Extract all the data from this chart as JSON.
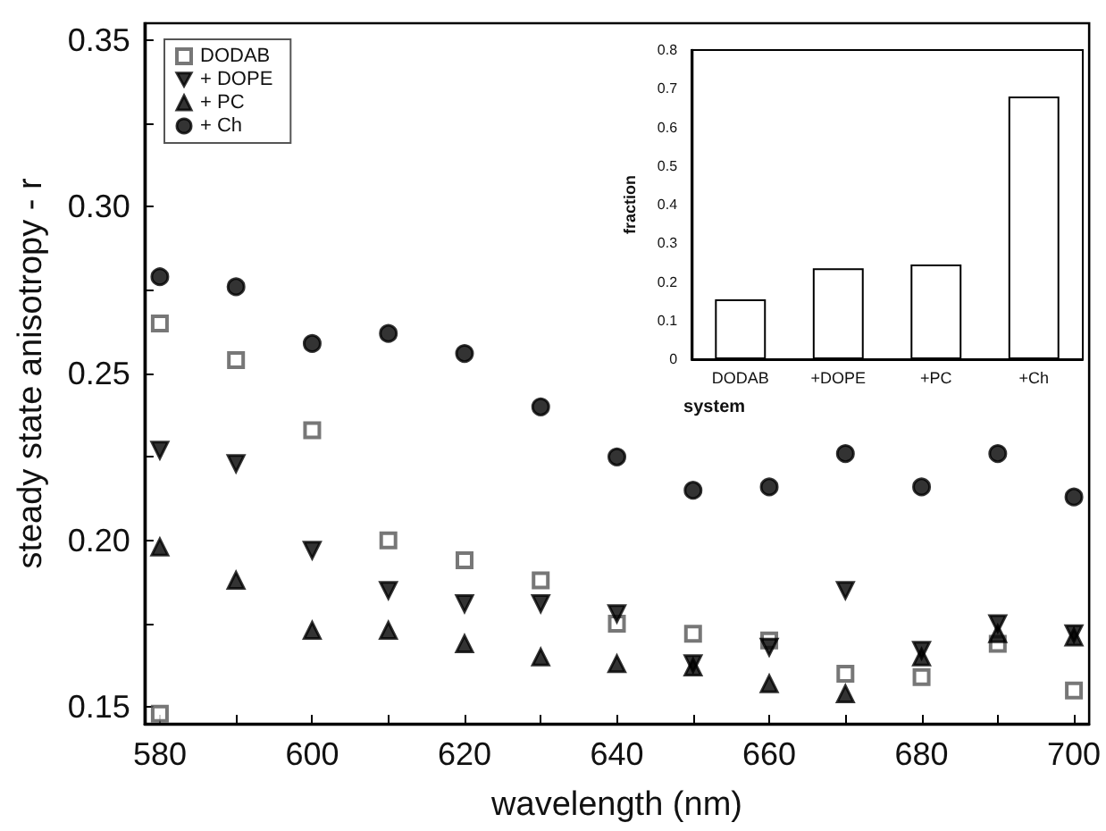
{
  "chart_data": [
    {
      "type": "scatter",
      "xlabel": "wavelength (nm)",
      "ylabel": "steady state anisotropy - r",
      "xlim": [
        578,
        702
      ],
      "xticks": [
        580,
        {
          "value": 590,
          "label": null
        },
        600,
        {
          "value": 610,
          "label": null
        },
        620,
        {
          "value": 630,
          "label": null
        },
        640,
        {
          "value": 650,
          "label": null
        },
        660,
        {
          "value": 670,
          "label": null
        },
        680,
        {
          "value": 690,
          "label": null
        },
        700
      ],
      "ylim": [
        0.145,
        0.355
      ],
      "yticks": [
        {
          "value": 0.15,
          "label": "0.15"
        },
        {
          "value": 0.175,
          "label": null
        },
        {
          "value": 0.2,
          "label": "0.20"
        },
        {
          "value": 0.225,
          "label": null
        },
        {
          "value": 0.25,
          "label": "0.25"
        },
        {
          "value": 0.275,
          "label": null
        },
        {
          "value": 0.3,
          "label": "0.30"
        },
        {
          "value": 0.325,
          "label": null
        },
        {
          "value": 0.35,
          "label": "0.35"
        }
      ],
      "legend": "top left",
      "grid": false,
      "series": [
        {
          "name": "DODAB",
          "color": "#555555",
          "marker": "square",
          "x": [
            580,
            580,
            590,
            600,
            610,
            620,
            630,
            640,
            650,
            660,
            670,
            680,
            690,
            700
          ],
          "values": [
            0.265,
            0.148,
            0.254,
            0.233,
            0.2,
            0.194,
            0.188,
            0.175,
            0.172,
            0.17,
            0.16,
            0.159,
            0.169,
            0.155
          ]
        },
        {
          "name": "+ DOPE",
          "color": "#000000",
          "marker": "triangle-down",
          "x": [
            580,
            590,
            600,
            610,
            620,
            630,
            640,
            650,
            660,
            670,
            680,
            690,
            700
          ],
          "values": [
            0.227,
            0.223,
            0.197,
            0.185,
            0.181,
            0.181,
            0.178,
            0.163,
            0.168,
            0.185,
            0.167,
            0.175,
            0.172
          ]
        },
        {
          "name": "+ PC",
          "color": "#000000",
          "marker": "triangle",
          "x": [
            580,
            590,
            600,
            610,
            620,
            630,
            640,
            650,
            660,
            670,
            680,
            690,
            700
          ],
          "values": [
            0.198,
            0.188,
            0.173,
            0.173,
            0.169,
            0.165,
            0.163,
            0.162,
            0.157,
            0.154,
            0.165,
            0.172,
            0.171
          ]
        },
        {
          "name": "+ Ch",
          "color": "#000000",
          "marker": "circle",
          "x": [
            580,
            590,
            600,
            610,
            620,
            630,
            640,
            650,
            660,
            670,
            680,
            690,
            700
          ],
          "values": [
            0.279,
            0.276,
            0.259,
            0.262,
            0.256,
            0.24,
            0.225,
            0.215,
            0.216,
            0.226,
            0.216,
            0.226,
            0.213
          ]
        }
      ]
    },
    {
      "type": "bar",
      "xlabel": "system",
      "ylabel": "fraction",
      "categories": [
        "DODAB",
        "+DOPE",
        "+PC",
        "+Ch"
      ],
      "values": [
        0.155,
        0.235,
        0.245,
        0.68
      ],
      "color": "#ffffff",
      "ylim": [
        0,
        0.8
      ],
      "yticks": [
        0,
        0.1,
        0.2,
        0.3,
        0.4,
        0.5,
        0.6,
        0.7,
        0.8
      ],
      "grid": false,
      "legend": false
    }
  ]
}
